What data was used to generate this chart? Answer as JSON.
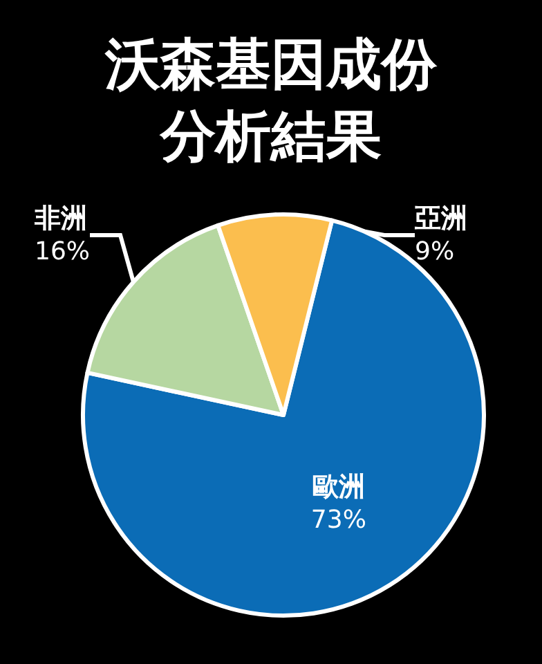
{
  "chart_data": {
    "type": "pie",
    "title": "沃森基因成份分析結果",
    "categories": [
      "歐洲",
      "非洲",
      "亞洲"
    ],
    "values": [
      73,
      16,
      9
    ],
    "value_labels": [
      "73%",
      "16%",
      "9%"
    ],
    "colors": [
      "#0b6cb6",
      "#b6d7a1",
      "#fbbe4e"
    ]
  }
}
